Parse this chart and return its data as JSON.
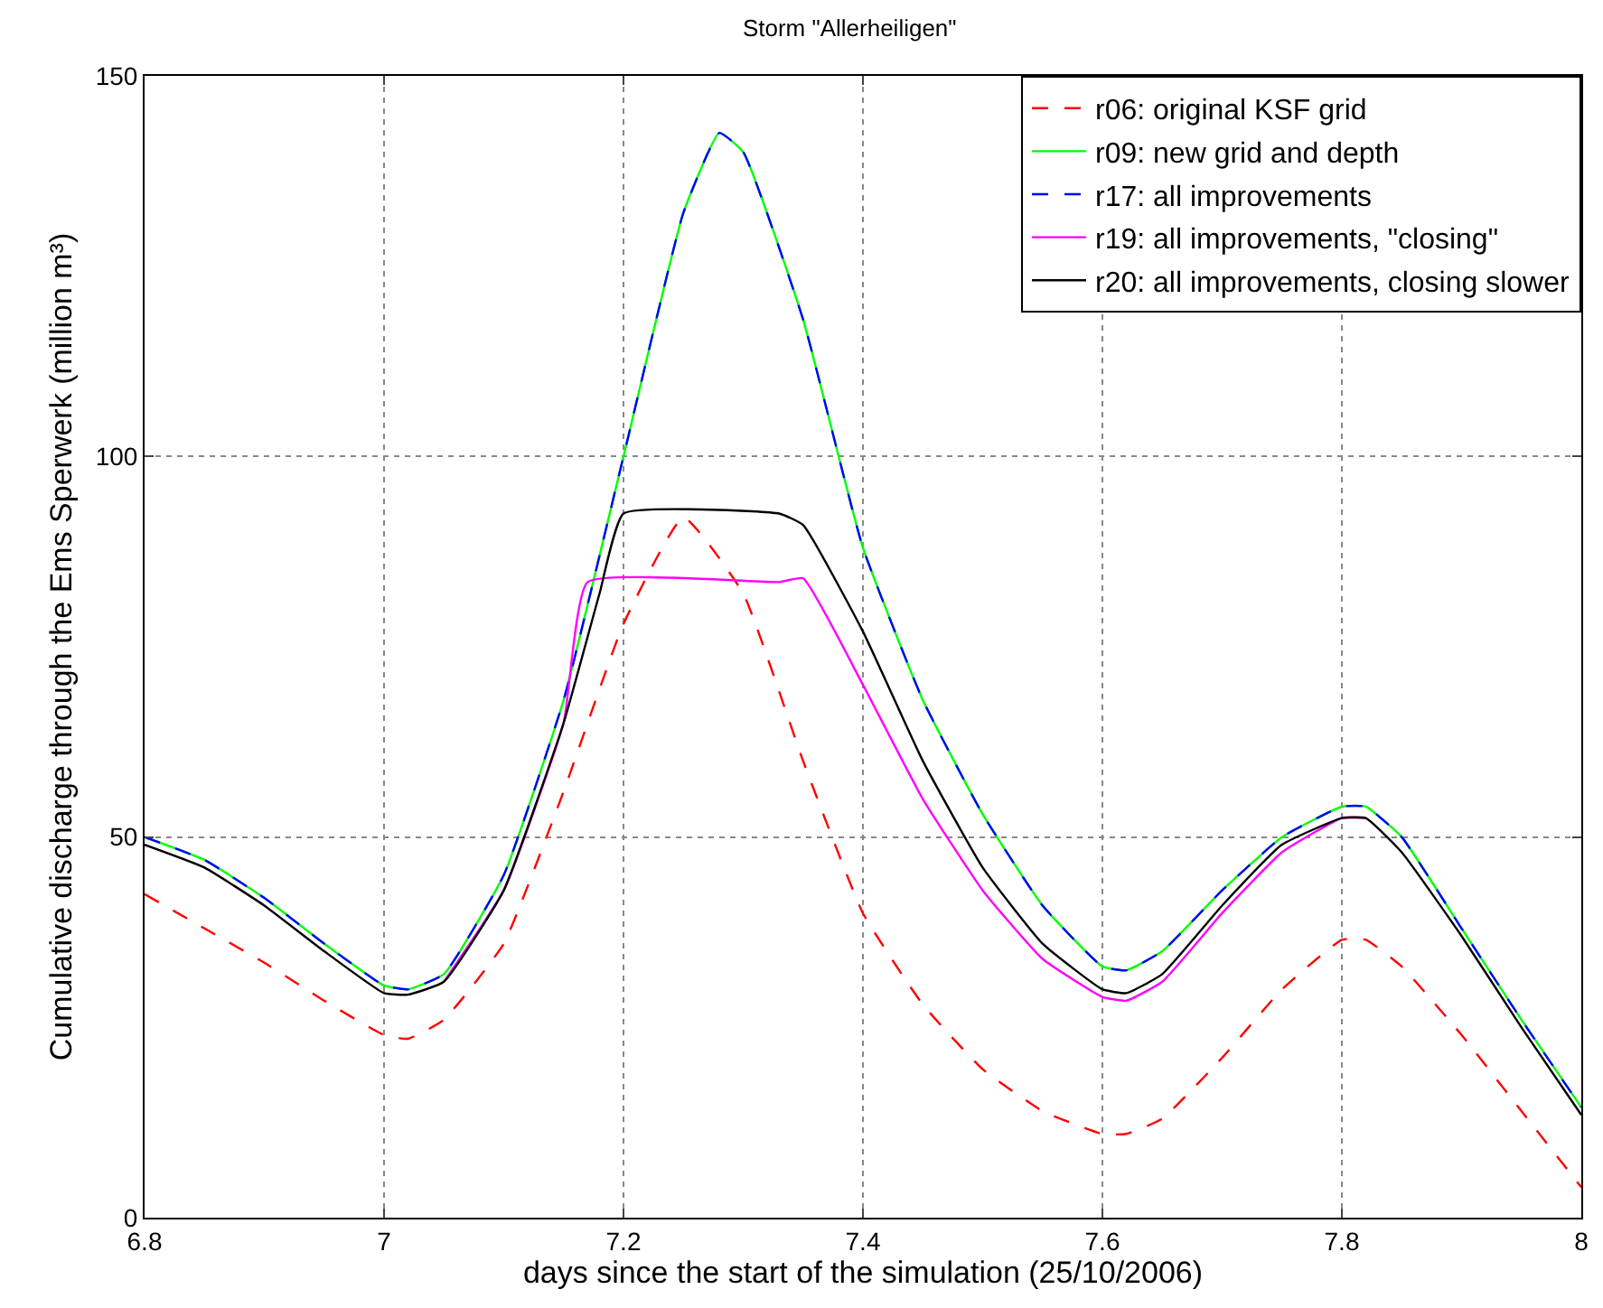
{
  "chart_data": {
    "type": "line",
    "title": "Storm \"Allerheiligen\"",
    "xlabel": "days since the start of the simulation (25/10/2006)",
    "ylabel": "Cumulative discharge through the Ems Sperwerk (million m³)",
    "xlim": [
      6.8,
      8
    ],
    "xticks": [
      6.8,
      7,
      7.2,
      7.4,
      7.6,
      7.8,
      8
    ],
    "ylim": [
      0,
      150
    ],
    "yticks": [
      0,
      50,
      100,
      150
    ],
    "grid": true,
    "legend": "top right",
    "series": [
      {
        "name": "r06: original KSF grid",
        "color": "#ff0000",
        "line_style": "dashed",
        "x": [
          6.8,
          6.85,
          6.9,
          6.95,
          7.0,
          7.02,
          7.05,
          7.1,
          7.15,
          7.2,
          7.25,
          7.3,
          7.35,
          7.4,
          7.45,
          7.5,
          7.55,
          7.6,
          7.62,
          7.65,
          7.7,
          7.75,
          7.8,
          7.82,
          7.85,
          7.9,
          7.95,
          8.0
        ],
        "values": [
          42.5,
          38,
          33.5,
          28.5,
          24,
          23.5,
          26,
          36,
          56,
          78,
          92,
          82,
          60,
          40,
          28,
          19.5,
          14,
          11,
          11,
          13,
          21,
          30,
          36.5,
          36.5,
          33,
          24,
          14,
          4
        ]
      },
      {
        "name": "r09: new grid and depth",
        "color": "#00ff00",
        "line_style": "solid",
        "x": [
          6.8,
          6.85,
          6.9,
          6.95,
          7.0,
          7.02,
          7.05,
          7.1,
          7.15,
          7.2,
          7.25,
          7.28,
          7.3,
          7.35,
          7.4,
          7.45,
          7.5,
          7.55,
          7.6,
          7.62,
          7.65,
          7.7,
          7.75,
          7.8,
          7.82,
          7.85,
          7.9,
          7.95,
          8.0
        ],
        "values": [
          50,
          47,
          42,
          36,
          30.5,
          30,
          32,
          45,
          68,
          100,
          132,
          142.5,
          140,
          118,
          88,
          68,
          53,
          41,
          33,
          32.5,
          35,
          43,
          50,
          54,
          54,
          50,
          38,
          26,
          14.5
        ]
      },
      {
        "name": "r17: all improvements",
        "color": "#0000ff",
        "line_style": "dashed",
        "x": [
          6.8,
          6.85,
          6.9,
          6.95,
          7.0,
          7.02,
          7.05,
          7.1,
          7.15,
          7.2,
          7.25,
          7.28,
          7.3,
          7.35,
          7.4,
          7.45,
          7.5,
          7.55,
          7.6,
          7.62,
          7.65,
          7.7,
          7.75,
          7.8,
          7.82,
          7.85,
          7.9,
          7.95,
          8.0
        ],
        "values": [
          50,
          47,
          42,
          36,
          30.5,
          30,
          32,
          45,
          68,
          100,
          132,
          142.5,
          140,
          118,
          88,
          68,
          53,
          41,
          33,
          32.5,
          35,
          43,
          50,
          54,
          54,
          50,
          38,
          26,
          14.5
        ]
      },
      {
        "name": "r19: all improvements, \"closing\"",
        "color": "#ff00ff",
        "line_style": "solid",
        "x": [
          7.05,
          7.1,
          7.15,
          7.17,
          7.33,
          7.35,
          7.4,
          7.45,
          7.5,
          7.55,
          7.6,
          7.62,
          7.65,
          7.7,
          7.75,
          7.8,
          7.82
        ],
        "values": [
          31,
          43,
          65,
          83.5,
          83.5,
          84,
          70,
          55,
          43,
          34,
          29,
          28.5,
          31,
          40,
          48,
          52.5,
          52.5
        ]
      },
      {
        "name": "r20: all improvements, closing slower",
        "color": "#000000",
        "line_style": "solid",
        "x": [
          6.8,
          6.85,
          6.9,
          6.95,
          7.0,
          7.02,
          7.05,
          7.1,
          7.15,
          7.18,
          7.2,
          7.33,
          7.35,
          7.4,
          7.45,
          7.5,
          7.55,
          7.6,
          7.62,
          7.65,
          7.7,
          7.75,
          7.8,
          7.82,
          7.85,
          7.9,
          7.95,
          8.0
        ],
        "values": [
          49,
          46,
          41,
          35,
          29.5,
          29.3,
          31,
          43,
          65,
          82,
          92.5,
          92.5,
          91,
          77,
          60,
          46,
          36,
          30,
          29.5,
          32,
          41,
          49,
          52.5,
          52.5,
          48,
          37,
          25,
          13.5
        ]
      }
    ]
  }
}
